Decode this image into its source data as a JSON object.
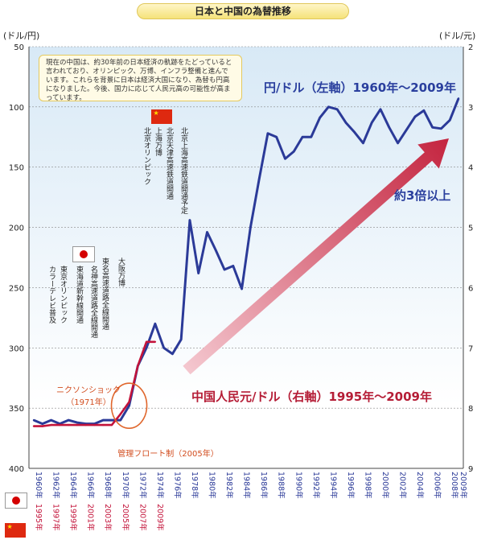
{
  "title": "日本と中国の為替推移",
  "left_axis_unit": "(ドル/円)",
  "right_axis_unit": "(ドル/元)",
  "note": "現在の中国は、約30年前の日本経済の軌跡をたどっていると言われており、オリンピック、万博、インフラ整備と進んでいます。これらを背景に日本は経済大国になり、為替も円高になりました。今後、国力に応じて人民元高の可能性が高まっています。",
  "yen_series_title": "円/ドル（左軸）1960年～2009年",
  "yuan_series_title": "中国人民元/ドル（右軸）1995年～2009年",
  "arrow_label": "約3倍以上",
  "nixon_label": "ニクソンショック\n（1971年）",
  "float_label": "管理フロート制（2005年）",
  "japan_events": [
    "カラーテレビ普及",
    "東京オリンピック",
    "東海道新幹線開通",
    "名神高速道路全線開通",
    "東名高速道路全線開通",
    "大阪万博"
  ],
  "china_events": [
    "北京オリンピック",
    "上海万博",
    "北京天津高速鉄道開通",
    "北京上海高速鉄道開通予定"
  ],
  "colors": {
    "yen": "#2b3a98",
    "yuan": "#c3133a",
    "arrow": "#c4243f",
    "grid": "#888888"
  },
  "chart_data": {
    "type": "line",
    "left_ylim": [
      400,
      50
    ],
    "left_yticks": [
      50,
      100,
      150,
      200,
      250,
      300,
      350,
      400
    ],
    "right_ylim": [
      9,
      2
    ],
    "right_yticks": [
      2,
      3,
      4,
      5,
      6,
      7,
      8,
      9
    ],
    "x_labels_japan": [
      "1960年",
      "1962年",
      "1964年",
      "1966年",
      "1968年",
      "1970年",
      "1972年",
      "1974年",
      "1976年",
      "1978年",
      "1980年",
      "1982年",
      "1984年",
      "1986年",
      "1988年",
      "1990年",
      "1992年",
      "1994年",
      "1996年",
      "1998年",
      "2000年",
      "2002年",
      "2004年",
      "2006年",
      "2008年",
      "2009年"
    ],
    "x_labels_china": [
      "1995年",
      "1997年",
      "1999年",
      "2001年",
      "2003年",
      "2005年",
      "2007年",
      "2009年"
    ],
    "series": [
      {
        "name": "円/ドル（左軸）1960年～2009年",
        "axis": "left",
        "x": [
          1960,
          1961,
          1962,
          1963,
          1964,
          1965,
          1966,
          1967,
          1968,
          1969,
          1970,
          1971,
          1972,
          1973,
          1974,
          1975,
          1976,
          1977,
          1978,
          1979,
          1980,
          1981,
          1982,
          1983,
          1984,
          1985,
          1986,
          1987,
          1988,
          1989,
          1990,
          1991,
          1992,
          1993,
          1994,
          1995,
          1996,
          1997,
          1998,
          1999,
          2000,
          2001,
          2002,
          2003,
          2004,
          2005,
          2006,
          2007,
          2008,
          2009
        ],
        "values": [
          360,
          363,
          360,
          363,
          360,
          362,
          363,
          363,
          360,
          360,
          360,
          348,
          315,
          300,
          280,
          300,
          305,
          293,
          194,
          238,
          204,
          219,
          235,
          232,
          251,
          200,
          160,
          122,
          125,
          143,
          137,
          125,
          125,
          109,
          100,
          102,
          113,
          121,
          130,
          113,
          102,
          117,
          130,
          119,
          108,
          103,
          117,
          118,
          111,
          93
        ]
      },
      {
        "name": "中国人民元/ドル（右軸）1995年～2009年",
        "axis": "right",
        "x": [
          1995,
          1996,
          1997,
          1998,
          1999,
          2000,
          2001,
          2002,
          2003,
          2004,
          2005,
          2006,
          2007,
          2008,
          2009
        ],
        "values": [
          8.3,
          8.3,
          8.28,
          8.28,
          8.28,
          8.28,
          8.28,
          8.28,
          8.28,
          8.28,
          8.1,
          7.9,
          7.3,
          6.9,
          6.9
        ]
      }
    ]
  }
}
